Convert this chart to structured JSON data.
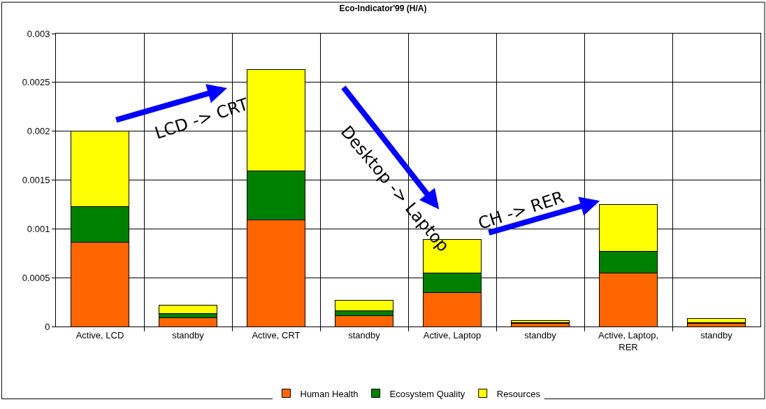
{
  "chart_data": {
    "type": "bar",
    "title": "Eco-Indicator'99 (H/A)",
    "stacked": true,
    "categories": [
      "Active, LCD",
      "standby",
      "Active, CRT",
      "standby",
      "Active, Laptop",
      "standby",
      "Active, Laptop, RER",
      "standby"
    ],
    "series": [
      {
        "name": "Human Health",
        "color": "#ff6600",
        "values": [
          0.00086,
          9e-05,
          0.00109,
          0.00011,
          0.00035,
          3e-05,
          0.00055,
          3e-05
        ]
      },
      {
        "name": "Ecosystem Quality",
        "color": "#008000",
        "values": [
          0.00037,
          4e-05,
          0.0005,
          5e-05,
          0.0002,
          1e-05,
          0.00022,
          1e-05
        ]
      },
      {
        "name": "Resources",
        "color": "#ffff00",
        "values": [
          0.00077,
          9e-05,
          0.00104,
          0.00011,
          0.00034,
          2e-05,
          0.00048,
          4e-05
        ]
      }
    ],
    "ylim": [
      0,
      0.003
    ],
    "yticks": [
      0,
      0.0005,
      0.001,
      0.0015,
      0.002,
      0.0025,
      0.003
    ],
    "grid": true,
    "legend": "bottom",
    "annotations": [
      "LCD -> CRT",
      "Desktop -> Laptop",
      "CH -> RER"
    ]
  }
}
